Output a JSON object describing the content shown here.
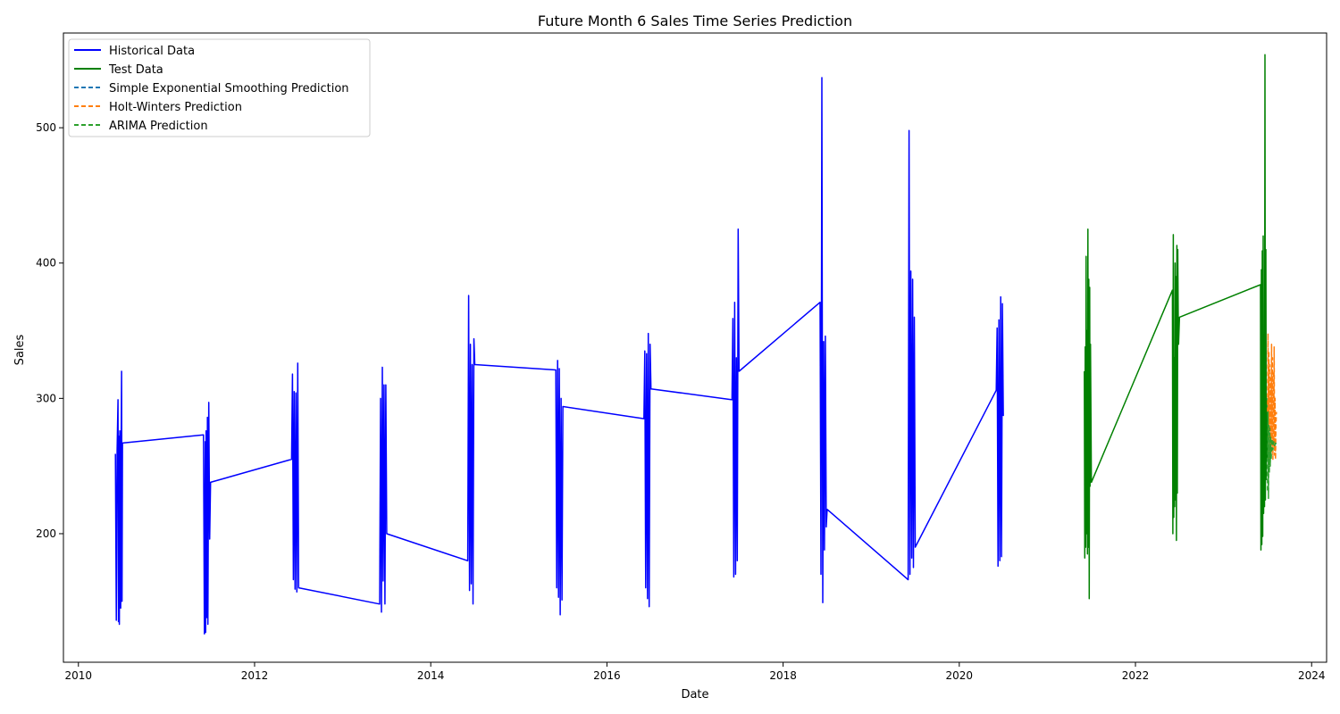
{
  "chart_data": {
    "type": "line",
    "title": "Future Month 6 Sales Time Series Prediction",
    "xlabel": "Date",
    "ylabel": "Sales",
    "xlim": [
      2009.83,
      2024.17
    ],
    "ylim": [
      105,
      570
    ],
    "x_ticks": [
      "2010",
      "2012",
      "2014",
      "2016",
      "2018",
      "2020",
      "2022",
      "2024"
    ],
    "y_ticks": [
      "200",
      "300",
      "400",
      "500"
    ],
    "grid": false,
    "legend_position": "top-left",
    "series": [
      {
        "name": "Historical Data",
        "color": "#0000ff",
        "style": "solid",
        "x": [
          2010.42,
          2010.43,
          2010.44,
          2010.45,
          2010.455,
          2010.46,
          2010.465,
          2010.47,
          2010.475,
          2010.48,
          2010.485,
          2010.49,
          2010.495,
          2010.5,
          2011.42,
          2011.43,
          2011.44,
          2011.445,
          2011.45,
          2011.46,
          2011.465,
          2011.47,
          2011.48,
          2011.49,
          2011.5,
          2012.42,
          2012.43,
          2012.44,
          2012.45,
          2012.46,
          2012.47,
          2012.48,
          2012.49,
          2012.5,
          2013.42,
          2013.43,
          2013.44,
          2013.45,
          2013.46,
          2013.47,
          2013.48,
          2013.49,
          2013.5,
          2014.42,
          2014.43,
          2014.44,
          2014.45,
          2014.46,
          2014.47,
          2014.48,
          2014.49,
          2014.5,
          2015.42,
          2015.43,
          2015.44,
          2015.45,
          2015.46,
          2015.47,
          2015.48,
          2015.49,
          2015.5,
          2016.42,
          2016.43,
          2016.44,
          2016.45,
          2016.46,
          2016.47,
          2016.48,
          2016.49,
          2016.5,
          2017.42,
          2017.43,
          2017.44,
          2017.45,
          2017.46,
          2017.47,
          2017.48,
          2017.49,
          2017.5,
          2018.42,
          2018.43,
          2018.44,
          2018.45,
          2018.46,
          2018.47,
          2018.48,
          2018.49,
          2018.5,
          2019.42,
          2019.43,
          2019.44,
          2019.45,
          2019.46,
          2019.47,
          2019.48,
          2019.49,
          2019.5,
          2020.42,
          2020.43,
          2020.44,
          2020.45,
          2020.46,
          2020.47,
          2020.48,
          2020.49,
          2020.5
        ],
        "y": [
          259,
          136,
          262,
          299,
          135,
          272,
          133,
          276,
          238,
          145,
          264,
          320,
          150,
          267,
          273,
          126,
          268,
          127,
          276,
          138,
          286,
          133,
          297,
          196,
          238,
          255,
          318,
          166,
          305,
          159,
          304,
          157,
          326,
          160,
          148,
          300,
          142,
          323,
          165,
          310,
          148,
          310,
          200,
          180,
          376,
          158,
          340,
          163,
          325,
          148,
          344,
          325,
          321,
          160,
          328,
          153,
          322,
          140,
          300,
          151,
          294,
          285,
          335,
          160,
          333,
          152,
          348,
          146,
          340,
          307,
          299,
          359,
          168,
          371,
          170,
          330,
          180,
          425,
          320,
          371,
          170,
          537,
          149,
          342,
          188,
          346,
          205,
          218,
          166,
          498,
          170,
          394,
          182,
          388,
          175,
          360,
          190,
          306,
          352,
          176,
          358,
          180,
          375,
          183,
          370,
          287
        ]
      },
      {
        "name": "Test Data",
        "color": "#008000",
        "style": "solid",
        "x": [
          2021.42,
          2021.425,
          2021.43,
          2021.435,
          2021.44,
          2021.445,
          2021.45,
          2021.455,
          2021.46,
          2021.465,
          2021.47,
          2021.475,
          2021.48,
          2021.485,
          2021.49,
          2021.5,
          2022.42,
          2022.425,
          2022.43,
          2022.435,
          2022.44,
          2022.445,
          2022.45,
          2022.455,
          2022.46,
          2022.465,
          2022.47,
          2022.475,
          2022.48,
          2022.485,
          2022.49,
          2022.5,
          2023.42,
          2023.425,
          2023.43,
          2023.435,
          2023.44,
          2023.445,
          2023.45,
          2023.455,
          2023.46,
          2023.465,
          2023.47,
          2023.475,
          2023.48,
          2023.485,
          2023.49,
          2023.5
        ],
        "y": [
          320,
          182,
          338,
          190,
          405,
          200,
          350,
          185,
          425,
          190,
          388,
          152,
          382,
          235,
          340,
          238,
          380,
          200,
          421,
          212,
          330,
          220,
          400,
          225,
          390,
          195,
          413,
          230,
          410,
          360,
          340,
          360,
          384,
          188,
          395,
          192,
          409,
          198,
          420,
          215,
          330,
          220,
          554,
          225,
          410,
          240,
          300,
          256
        ]
      },
      {
        "name": "Simple Exponential Smoothing Prediction",
        "color": "#1f77b4",
        "style": "dashed",
        "x": [],
        "y": []
      },
      {
        "name": "Holt-Winters Prediction",
        "color": "#ff7f0e",
        "style": "dashed",
        "x": [
          2023.5,
          2023.505,
          2023.51,
          2023.515,
          2023.52,
          2023.525,
          2023.53,
          2023.535,
          2023.54,
          2023.545,
          2023.55,
          2023.555,
          2023.56,
          2023.565,
          2023.57,
          2023.575,
          2023.58,
          2023.585,
          2023.59,
          2023.595,
          2023.6
        ],
        "y": [
          290,
          348,
          268,
          335,
          255,
          325,
          262,
          315,
          258,
          340,
          262,
          330,
          255,
          320,
          265,
          338,
          258,
          300,
          255,
          280,
          290
        ]
      },
      {
        "name": "ARIMA Prediction",
        "color": "#2ca02c",
        "style": "dashed",
        "x": [
          2023.5,
          2023.505,
          2023.51,
          2023.515,
          2023.52,
          2023.525,
          2023.53,
          2023.535,
          2023.54,
          2023.55,
          2023.56,
          2023.57,
          2023.58,
          2023.59,
          2023.6
        ],
        "y": [
          232,
          290,
          226,
          280,
          245,
          278,
          250,
          272,
          255,
          270,
          262,
          268,
          265,
          267,
          266
        ]
      }
    ]
  }
}
